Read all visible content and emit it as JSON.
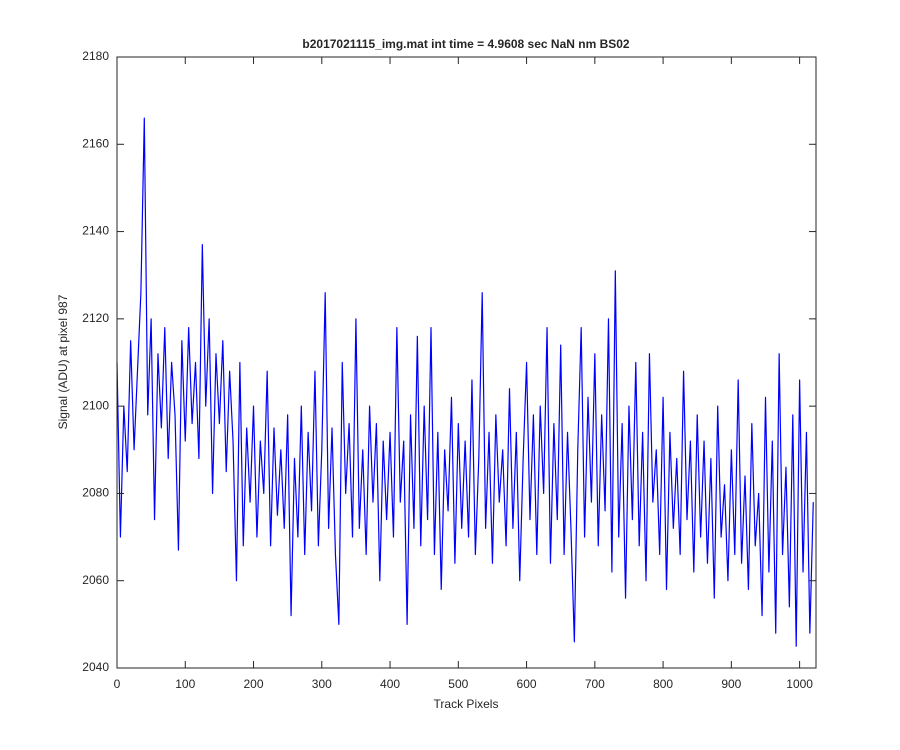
{
  "chart_data": {
    "type": "line",
    "title": "b2017021115_img.mat int time = 4.9608 sec  NaN nm BS02",
    "x_label": "Track Pixels",
    "y_label": "Signal (ADU) at pixel 987",
    "xlim": [
      0,
      1024
    ],
    "ylim": [
      2040,
      2180
    ],
    "xticks": [
      0,
      100,
      200,
      300,
      400,
      500,
      600,
      700,
      800,
      900,
      1000
    ],
    "yticks": [
      2040,
      2060,
      2080,
      2100,
      2120,
      2140,
      2160,
      2180
    ],
    "x": [
      0,
      5,
      10,
      15,
      20,
      25,
      30,
      35,
      40,
      45,
      50,
      55,
      60,
      65,
      70,
      75,
      80,
      85,
      90,
      95,
      100,
      105,
      110,
      115,
      120,
      125,
      130,
      135,
      140,
      145,
      150,
      155,
      160,
      165,
      170,
      175,
      180,
      185,
      190,
      195,
      200,
      205,
      210,
      215,
      220,
      225,
      230,
      235,
      240,
      245,
      250,
      255,
      260,
      265,
      270,
      275,
      280,
      285,
      290,
      295,
      300,
      305,
      310,
      315,
      320,
      325,
      330,
      335,
      340,
      345,
      350,
      355,
      360,
      365,
      370,
      375,
      380,
      385,
      390,
      395,
      400,
      405,
      410,
      415,
      420,
      425,
      430,
      435,
      440,
      445,
      450,
      455,
      460,
      465,
      470,
      475,
      480,
      485,
      490,
      495,
      500,
      505,
      510,
      515,
      520,
      525,
      530,
      535,
      540,
      545,
      550,
      555,
      560,
      565,
      570,
      575,
      580,
      585,
      590,
      595,
      600,
      605,
      610,
      615,
      620,
      625,
      630,
      635,
      640,
      645,
      650,
      655,
      660,
      665,
      670,
      675,
      680,
      685,
      690,
      695,
      700,
      705,
      710,
      715,
      720,
      725,
      730,
      735,
      740,
      745,
      750,
      755,
      760,
      765,
      770,
      775,
      780,
      785,
      790,
      795,
      800,
      805,
      810,
      815,
      820,
      825,
      830,
      835,
      840,
      845,
      850,
      855,
      860,
      865,
      870,
      875,
      880,
      885,
      890,
      895,
      900,
      905,
      910,
      915,
      920,
      925,
      930,
      935,
      940,
      945,
      950,
      955,
      960,
      965,
      970,
      975,
      980,
      985,
      990,
      995,
      1000,
      1005,
      1010,
      1015,
      1020
    ],
    "series": [
      {
        "name": "signal",
        "color": "#0000ff",
        "values": [
          2110,
          2070,
          2100,
          2085,
          2115,
          2090,
          2108,
          2126,
          2166,
          2098,
          2120,
          2074,
          2112,
          2095,
          2118,
          2088,
          2110,
          2098,
          2067,
          2115,
          2092,
          2118,
          2096,
          2110,
          2088,
          2137,
          2100,
          2120,
          2080,
          2112,
          2096,
          2115,
          2085,
          2108,
          2092,
          2060,
          2110,
          2068,
          2095,
          2078,
          2100,
          2070,
          2092,
          2080,
          2108,
          2068,
          2095,
          2075,
          2090,
          2072,
          2098,
          2052,
          2088,
          2070,
          2100,
          2066,
          2094,
          2076,
          2108,
          2068,
          2090,
          2126,
          2072,
          2095,
          2066,
          2050,
          2110,
          2080,
          2096,
          2070,
          2120,
          2072,
          2090,
          2066,
          2100,
          2078,
          2096,
          2060,
          2092,
          2074,
          2094,
          2070,
          2118,
          2078,
          2092,
          2050,
          2098,
          2072,
          2116,
          2068,
          2100,
          2074,
          2118,
          2066,
          2094,
          2058,
          2090,
          2076,
          2102,
          2064,
          2096,
          2072,
          2092,
          2070,
          2106,
          2066,
          2088,
          2126,
          2072,
          2094,
          2064,
          2098,
          2078,
          2090,
          2068,
          2104,
          2072,
          2094,
          2060,
          2088,
          2110,
          2074,
          2098,
          2066,
          2100,
          2080,
          2118,
          2064,
          2096,
          2074,
          2114,
          2066,
          2094,
          2072,
          2046,
          2090,
          2118,
          2070,
          2102,
          2078,
          2112,
          2068,
          2098,
          2076,
          2120,
          2062,
          2131,
          2070,
          2096,
          2056,
          2100,
          2074,
          2110,
          2068,
          2094,
          2060,
          2112,
          2078,
          2090,
          2066,
          2102,
          2058,
          2094,
          2072,
          2088,
          2066,
          2108,
          2074,
          2092,
          2062,
          2098,
          2070,
          2092,
          2064,
          2088,
          2056,
          2100,
          2070,
          2082,
          2060,
          2090,
          2066,
          2106,
          2064,
          2084,
          2058,
          2096,
          2068,
          2080,
          2052,
          2102,
          2062,
          2092,
          2048,
          2112,
          2066,
          2086,
          2054,
          2098,
          2045,
          2106,
          2062,
          2094,
          2048,
          2078
        ]
      }
    ]
  }
}
